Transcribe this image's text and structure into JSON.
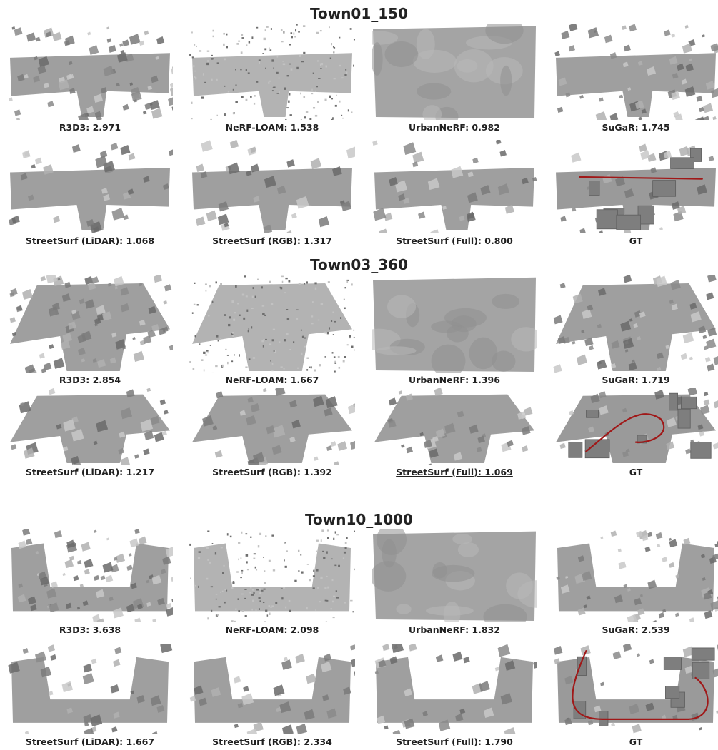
{
  "sections": [
    {
      "title": "Town01_150",
      "rows": [
        [
          {
            "caption": "R3D3: 2.971",
            "style": "noisy",
            "underline": false
          },
          {
            "caption": "NeRF-LOAM: 1.538",
            "style": "points",
            "underline": false
          },
          {
            "caption": "UrbanNeRF: 0.982",
            "style": "smooth",
            "underline": false
          },
          {
            "caption": "SuGaR: 1.745",
            "style": "blobby",
            "underline": false
          }
        ],
        [
          {
            "caption": "StreetSurf (LiDAR): 1.068",
            "style": "street",
            "underline": false
          },
          {
            "caption": "StreetSurf (RGB): 1.317",
            "style": "street",
            "underline": false
          },
          {
            "caption": "StreetSurf (Full): 0.800",
            "style": "street",
            "underline": true
          },
          {
            "caption": "GT",
            "style": "gt",
            "underline": false
          }
        ]
      ]
    },
    {
      "title": "Town03_360",
      "rows": [
        [
          {
            "caption": "R3D3: 2.854",
            "style": "noisy",
            "underline": false
          },
          {
            "caption": "NeRF-LOAM: 1.667",
            "style": "points",
            "underline": false
          },
          {
            "caption": "UrbanNeRF: 1.396",
            "style": "smooth",
            "underline": false
          },
          {
            "caption": "SuGaR: 1.719",
            "style": "blobby",
            "underline": false
          }
        ],
        [
          {
            "caption": "StreetSurf (LiDAR): 1.217",
            "style": "street",
            "underline": false
          },
          {
            "caption": "StreetSurf (RGB): 1.392",
            "style": "street",
            "underline": false
          },
          {
            "caption": "StreetSurf (Full): 1.069",
            "style": "street",
            "underline": true
          },
          {
            "caption": "GT",
            "style": "gt",
            "underline": false
          }
        ]
      ]
    },
    {
      "title": "Town10_1000",
      "rows": [
        [
          {
            "caption": "R3D3: 3.638",
            "style": "noisy",
            "underline": false
          },
          {
            "caption": "NeRF-LOAM: 2.098",
            "style": "points",
            "underline": false
          },
          {
            "caption": "UrbanNeRF: 1.832",
            "style": "smooth",
            "underline": false
          },
          {
            "caption": "SuGaR: 2.539",
            "style": "blobby",
            "underline": false
          }
        ],
        [
          {
            "caption": "StreetSurf (LiDAR): 1.667",
            "style": "street",
            "underline": false
          },
          {
            "caption": "StreetSurf (RGB): 2.334",
            "style": "street",
            "underline": false
          },
          {
            "caption": "StreetSurf (Full): 1.790",
            "style": "street",
            "underline": false
          },
          {
            "caption": "GT",
            "style": "gt",
            "underline": false
          }
        ]
      ]
    }
  ],
  "colors": {
    "trajectory": "#a01818",
    "surface": "#9a9a9a"
  }
}
